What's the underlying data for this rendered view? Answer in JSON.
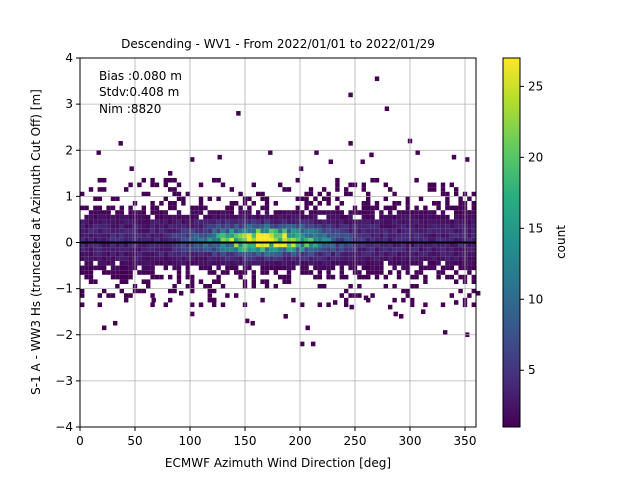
{
  "chart_data": {
    "type": "heatmap",
    "title": "Descending - WV1 - From 2022/01/01 to 2022/01/29",
    "xlabel": "ECMWF Azimuth Wind Direction [deg]",
    "ylabel": "S-1 A - WW3 Hs (truncated at Azimuth Cut Off) [m]",
    "xlim": [
      0,
      360
    ],
    "ylim": [
      -4,
      4
    ],
    "xticks": [
      0,
      50,
      100,
      150,
      200,
      250,
      300,
      350
    ],
    "yticks": [
      -4,
      -3,
      -2,
      -1,
      0,
      1,
      2,
      3,
      4
    ],
    "grid": true,
    "zero_line_y": 0,
    "stats": {
      "bias": "Bias :0.080 m",
      "stdv": "Stdv:0.408 m",
      "nim": "Nim :8820"
    },
    "colorbar": {
      "label": "count",
      "colormap": "viridis",
      "range": [
        1,
        27
      ],
      "ticks": [
        5,
        10,
        15,
        20,
        25
      ]
    },
    "bin_size": {
      "dx": 4,
      "dy": 0.1
    },
    "density_model": {
      "center_x": 170,
      "center_y": 0.05,
      "peak_count": 27,
      "core_sigma_x": 35,
      "core_sigma_y": 0.18,
      "band_sigma_y": 0.45,
      "band_level": 3.5
    },
    "outliers": [
      [
        268,
        3.55
      ],
      [
        244,
        3.2
      ],
      [
        277,
        2.9
      ],
      [
        142,
        2.8
      ],
      [
        35,
        2.15
      ],
      [
        244,
        2.15
      ],
      [
        298,
        2.2
      ],
      [
        305,
        1.95
      ],
      [
        15,
        1.95
      ],
      [
        125,
        1.85
      ],
      [
        213,
        1.95
      ],
      [
        171,
        1.95
      ],
      [
        350,
        1.8
      ],
      [
        338,
        1.85
      ],
      [
        263,
        1.9
      ],
      [
        255,
        1.75
      ],
      [
        226,
        1.75
      ],
      [
        100,
        1.8
      ],
      [
        199,
        1.6
      ],
      [
        80,
        1.5
      ],
      [
        45,
        1.6
      ],
      [
        20,
        -1.85
      ],
      [
        30,
        -1.75
      ],
      [
        65,
        -1.25
      ],
      [
        100,
        -1.55
      ],
      [
        140,
        -1.15
      ],
      [
        150,
        -1.7
      ],
      [
        155,
        -1.75
      ],
      [
        185,
        -1.6
      ],
      [
        205,
        -1.85
      ],
      [
        200,
        -2.2
      ],
      [
        210,
        -2.2
      ],
      [
        245,
        -1.4
      ],
      [
        258,
        -1.2
      ],
      [
        280,
        -1.4
      ],
      [
        285,
        -1.55
      ],
      [
        290,
        -1.6
      ],
      [
        300,
        -1.35
      ],
      [
        310,
        -1.5
      ],
      [
        330,
        -1.95
      ],
      [
        350,
        -2.0
      ],
      [
        340,
        -1.3
      ],
      [
        360,
        -1.1
      ],
      [
        90,
        -1.1
      ],
      [
        120,
        -1.25
      ],
      [
        230,
        -1.3
      ]
    ]
  }
}
